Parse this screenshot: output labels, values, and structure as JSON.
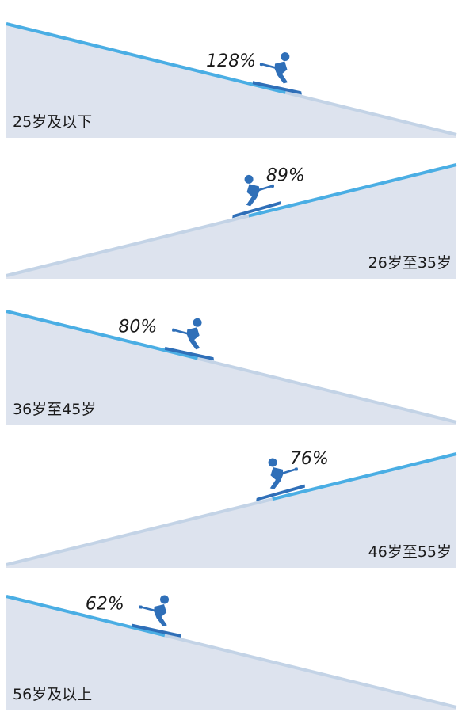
{
  "chart_data": {
    "type": "bar",
    "categories": [
      "25岁及以下",
      "26岁至35岁",
      "36岁至45岁",
      "46岁至55岁",
      "56岁及以上"
    ],
    "values": [
      128,
      89,
      80,
      76,
      62
    ],
    "value_labels": [
      "128%",
      "89%",
      "80%",
      "76%",
      "62%"
    ],
    "slope_direction": [
      "down",
      "up",
      "down",
      "up",
      "down"
    ],
    "unit": "%"
  },
  "colors": {
    "slope_fill": "#dde3ee",
    "slope_line": "#4aaee4",
    "slope_line_faded": "#c3d3e6",
    "skier": "#2f6fb8",
    "text": "#1a1a1a"
  },
  "icons": [
    "skier-icon"
  ]
}
